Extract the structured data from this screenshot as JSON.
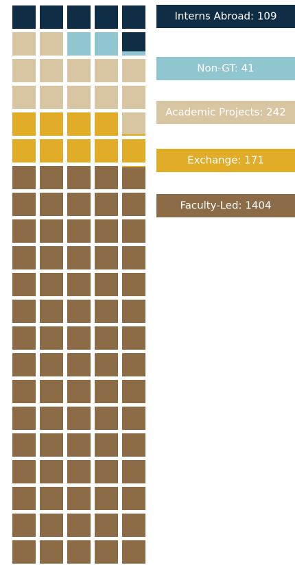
{
  "chart_data": {
    "type": "waffle",
    "categories": [
      "Interns Abroad: 109",
      "Non-GT: 41",
      "Academic Projects: 242",
      "Exchange: 171",
      "Faculty-Led: 1404"
    ],
    "values": [
      109,
      41,
      242,
      171,
      1404
    ],
    "colors": [
      "#0f2d45",
      "#8fc6d0",
      "#d8c6a3",
      "#e1ad28",
      "#8b6c47"
    ]
  }
}
